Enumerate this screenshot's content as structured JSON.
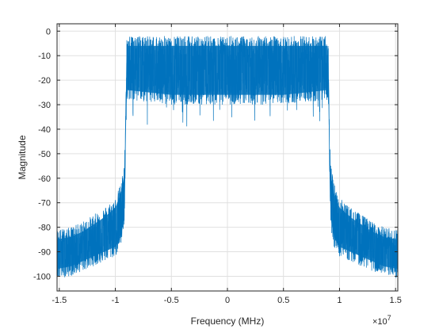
{
  "chart_data": {
    "type": "line",
    "title": "",
    "xlabel": "Frequency (MHz)",
    "ylabel": "Magnitude",
    "x_exponent": "×10",
    "x_exponent_power": "7",
    "xlim": [
      -1.52,
      1.52
    ],
    "ylim": [
      -106,
      3
    ],
    "xticks": [
      -1.5,
      -1,
      -0.5,
      0,
      0.5,
      1,
      1.5
    ],
    "xtick_labels": [
      "-1.5",
      "-1",
      "-0.5",
      "0",
      "0.5",
      "1",
      "1.5"
    ],
    "yticks": [
      0,
      -10,
      -20,
      -30,
      -40,
      -50,
      -60,
      -70,
      -80,
      -90,
      -100
    ],
    "ytick_labels": [
      "0",
      "-10",
      "-20",
      "-30",
      "-40",
      "-50",
      "-60",
      "-70",
      "-80",
      "-90",
      "-100"
    ],
    "grid": true,
    "line_color": "#0072BD",
    "series": [
      {
        "x": [
          -1.52,
          -1.4,
          -1.3,
          -1.2,
          -1.1,
          -1.0,
          -0.95,
          -0.92,
          -0.91,
          -0.9,
          -0.5,
          0,
          0.5,
          0.9,
          0.91,
          0.92,
          0.95,
          1.0,
          1.1,
          1.2,
          1.3,
          1.4,
          1.52
        ],
        "upper": [
          -81,
          -80,
          -78,
          -75,
          -72,
          -68,
          -62,
          -54,
          -40,
          -2,
          -2,
          -2,
          -2,
          -2,
          -40,
          -54,
          -62,
          -68,
          -72,
          -75,
          -78,
          -80,
          -81
        ],
        "lower": [
          -101,
          -100,
          -98,
          -96,
          -94,
          -92,
          -88,
          -80,
          -60,
          -28,
          -30,
          -30,
          -30,
          -28,
          -60,
          -80,
          -88,
          -92,
          -94,
          -96,
          -98,
          -100,
          -101
        ],
        "center": [
          -90,
          -90,
          -88,
          -86,
          -83,
          -80,
          -75,
          -67,
          -50,
          -15,
          -15,
          -15,
          -15,
          -15,
          -50,
          -67,
          -75,
          -80,
          -83,
          -86,
          -88,
          -90,
          -90
        ]
      }
    ]
  }
}
